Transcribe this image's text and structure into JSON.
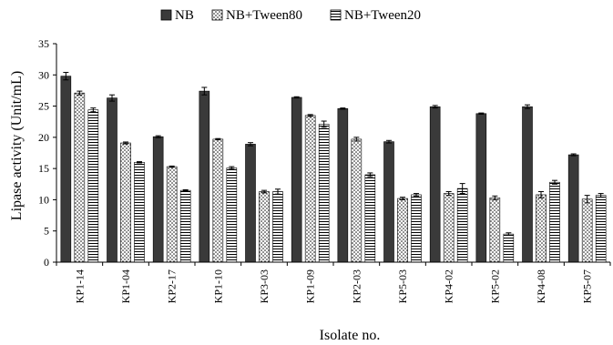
{
  "chart_data": {
    "type": "bar",
    "title": "",
    "xlabel": "Isolate no.",
    "ylabel": "Lipase activity (Unit/mL)",
    "ylim": [
      0,
      35
    ],
    "yticks": [
      0,
      5,
      10,
      15,
      20,
      25,
      30,
      35
    ],
    "grid": false,
    "legend_position": "top-center",
    "categories": [
      "KP1-14",
      "KP1-04",
      "KP2-17",
      "KP1-10",
      "KP3-03",
      "KP1-09",
      "KP2-03",
      "KP5-03",
      "KP4-02",
      "KP5-02",
      "KP4-08",
      "KP5-07"
    ],
    "series": [
      {
        "name": "NB",
        "pattern": "solid-dark",
        "color": "#3a3a3a",
        "values": [
          29.8,
          26.3,
          20.1,
          27.4,
          18.9,
          26.4,
          24.6,
          19.3,
          24.9,
          23.8,
          24.9,
          17.2
        ],
        "errors": [
          0.6,
          0.5,
          0.15,
          0.6,
          0.25,
          0.1,
          0.1,
          0.2,
          0.2,
          0.1,
          0.3,
          0.15
        ]
      },
      {
        "name": "NB+Tween80",
        "pattern": "dotted",
        "color": "#000000",
        "values": [
          27.1,
          19.1,
          15.3,
          19.7,
          11.3,
          23.5,
          19.7,
          10.2,
          11.0,
          10.3,
          10.8,
          10.1
        ],
        "errors": [
          0.3,
          0.15,
          0.1,
          0.1,
          0.2,
          0.15,
          0.3,
          0.2,
          0.3,
          0.3,
          0.5,
          0.6
        ]
      },
      {
        "name": "NB+Tween20",
        "pattern": "horizontal-lines",
        "color": "#000000",
        "values": [
          24.4,
          16.0,
          11.5,
          15.1,
          11.3,
          22.1,
          14.0,
          10.8,
          11.8,
          4.5,
          12.8,
          10.7
        ],
        "errors": [
          0.3,
          0.1,
          0.1,
          0.2,
          0.4,
          0.5,
          0.3,
          0.2,
          0.8,
          0.2,
          0.3,
          0.3
        ]
      }
    ]
  }
}
